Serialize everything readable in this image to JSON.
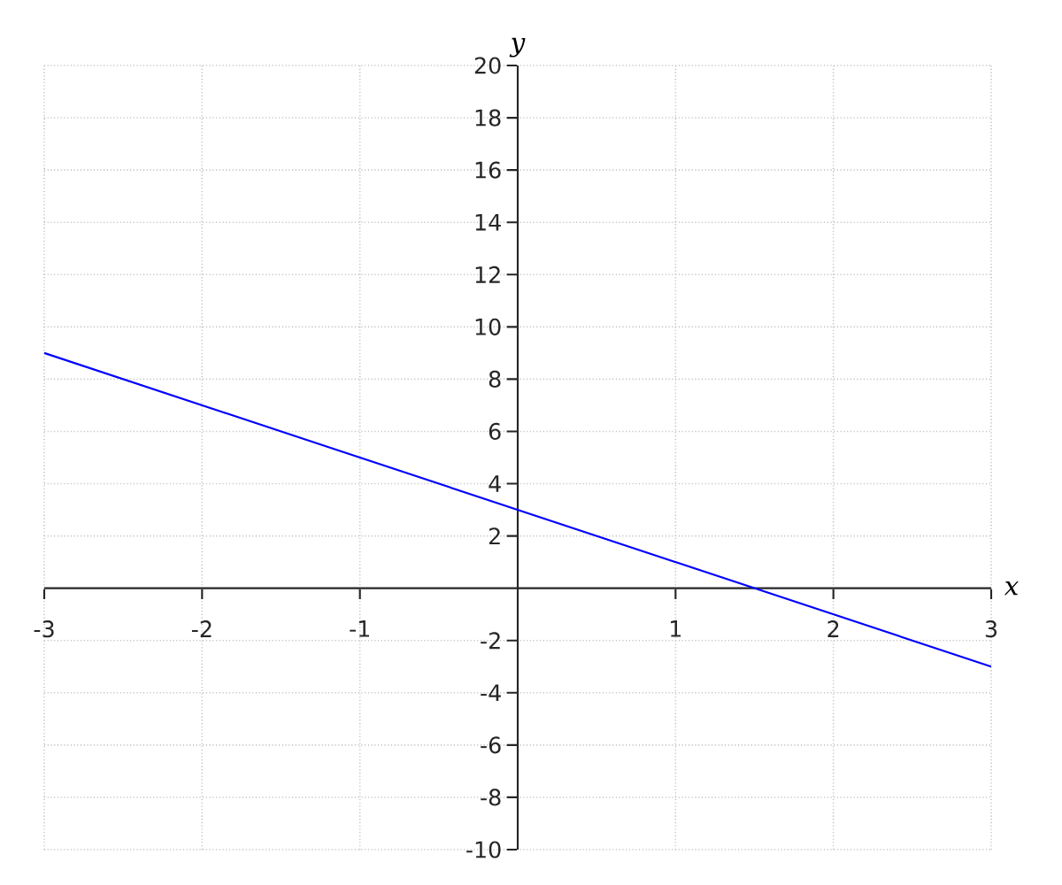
{
  "chart_data": {
    "type": "line",
    "xlabel": "x",
    "ylabel": "y",
    "x": [
      -3,
      3
    ],
    "series": [
      {
        "color": "#0000ff",
        "values": [
          9,
          -3
        ]
      }
    ],
    "xlim": [
      -3,
      3
    ],
    "ylim": [
      -10,
      20
    ],
    "xticks": [
      -3,
      -2,
      -1,
      1,
      2,
      3
    ],
    "yticks": [
      -10,
      -8,
      -6,
      -4,
      -2,
      2,
      4,
      6,
      8,
      10,
      12,
      14,
      16,
      18,
      20
    ],
    "grid": true,
    "marker": "none",
    "line_style": "solid"
  }
}
